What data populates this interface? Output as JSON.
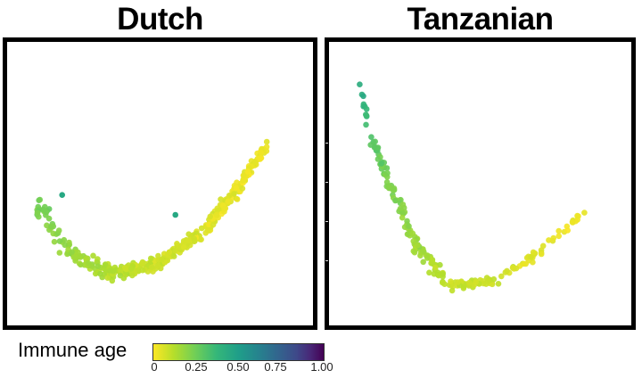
{
  "chart_data": [
    {
      "type": "scatter",
      "title": "Dutch",
      "xlabel": "",
      "ylabel": "",
      "grid": false,
      "color_variable": "Immune age",
      "description": "Curved (J/swoosh-shaped) manifold of points; low left arm with slightly higher immune age (greener/teal), long rising right arm with low immune age (yellow).",
      "trajectory": [
        {
          "x": 0.1,
          "y": 0.43,
          "immune_age": 0.25
        },
        {
          "x": 0.2,
          "y": 0.26,
          "immune_age": 0.18
        },
        {
          "x": 0.35,
          "y": 0.18,
          "immune_age": 0.12
        },
        {
          "x": 0.5,
          "y": 0.22,
          "immune_age": 0.08
        },
        {
          "x": 0.65,
          "y": 0.34,
          "immune_age": 0.05
        },
        {
          "x": 0.75,
          "y": 0.48,
          "immune_age": 0.04
        },
        {
          "x": 0.85,
          "y": 0.64,
          "immune_age": 0.03
        }
      ],
      "outliers": [
        {
          "x": 0.18,
          "y": 0.46,
          "immune_age": 0.45
        },
        {
          "x": 0.55,
          "y": 0.39,
          "immune_age": 0.45
        }
      ]
    },
    {
      "type": "scatter",
      "title": "Tanzanian",
      "xlabel": "",
      "ylabel": "",
      "grid": false,
      "color_variable": "Immune age",
      "description": "V-shaped manifold; steep descending left arm with higher immune age (teal at top), bottom and shallow right arm with low immune age (yellow).",
      "trajectory": [
        {
          "x": 0.1,
          "y": 0.85,
          "immune_age": 0.45
        },
        {
          "x": 0.14,
          "y": 0.66,
          "immune_age": 0.32
        },
        {
          "x": 0.2,
          "y": 0.5,
          "immune_age": 0.22
        },
        {
          "x": 0.28,
          "y": 0.3,
          "immune_age": 0.17
        },
        {
          "x": 0.4,
          "y": 0.14,
          "immune_age": 0.1
        },
        {
          "x": 0.55,
          "y": 0.16,
          "immune_age": 0.08
        },
        {
          "x": 0.7,
          "y": 0.26,
          "immune_age": 0.05
        },
        {
          "x": 0.84,
          "y": 0.4,
          "immune_age": 0.03
        }
      ]
    }
  ],
  "panels": {
    "left_title": "Dutch",
    "right_title": "Tanzanian"
  },
  "legend": {
    "label": "Immune age",
    "colormap": "viridis",
    "range": [
      0,
      1
    ],
    "ticks": [
      "0",
      "0.25",
      "0.50",
      "0.75",
      "1.00"
    ],
    "colors": {
      "low": "#FDE725",
      "mid_low": "#8FD744",
      "mid": "#21918C",
      "mid_high": "#3B528B",
      "high": "#440154"
    }
  }
}
